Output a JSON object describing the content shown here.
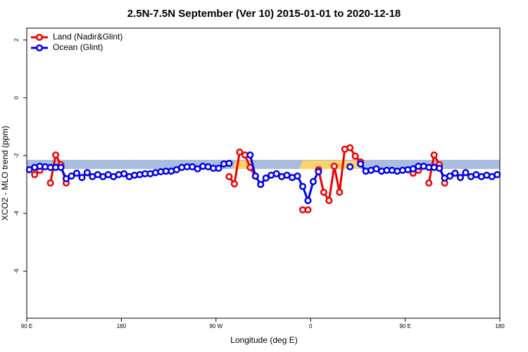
{
  "chart_data": {
    "type": "line",
    "title": "2.5N-7.5N September (Ver 10)   2015-01-01 to 2020-12-18",
    "x_label": "Longitude (deg E)",
    "y_label": "XCO2 - MLO trend (ppm)",
    "xlim": [
      90,
      540
    ],
    "ylim": [
      -7.63,
      2.41
    ],
    "xticks": [
      {
        "value": 90,
        "label": "90 E"
      },
      180,
      {
        "value": 270,
        "label": "90 W"
      },
      {
        "value": 360,
        "label": "0"
      },
      {
        "value": 450,
        "label": "90 E"
      },
      {
        "value": 540,
        "label": "180"
      }
    ],
    "yticks": [
      -6,
      -4,
      -2,
      0,
      2
    ],
    "legend": "top-left",
    "x": [
      92.5,
      97.5,
      102.5,
      107.5,
      112.5,
      117.5,
      122.5,
      127.5,
      132.5,
      137.5,
      142.5,
      147.5,
      152.5,
      157.5,
      162.5,
      167.5,
      172.5,
      177.5,
      182.5,
      187.5,
      192.5,
      197.5,
      202.5,
      207.5,
      212.5,
      217.5,
      222.5,
      227.5,
      232.5,
      237.5,
      242.5,
      247.5,
      252.5,
      257.5,
      262.5,
      267.5,
      272.5,
      277.5,
      282.5,
      287.5,
      292.5,
      297.5,
      302.5,
      307.5,
      312.5,
      317.5,
      322.5,
      327.5,
      332.5,
      337.5,
      342.5,
      347.5,
      352.5,
      357.5,
      362.5,
      367.5,
      372.5,
      377.5,
      382.5,
      387.5,
      392.5,
      397.5,
      402.5,
      407.5,
      412.5,
      417.5,
      422.5,
      427.5,
      432.5,
      437.5,
      442.5,
      447.5,
      452.5,
      457.5,
      462.5,
      467.5,
      472.5,
      477.5,
      482.5,
      487.5,
      492.5,
      497.5,
      502.5,
      507.5,
      512.5,
      517.5,
      522.5,
      527.5,
      532.5,
      537.5
    ],
    "series": [
      {
        "name": "Land (Nadir&Glint)",
        "color": "#ee0000",
        "values": [
          null,
          -2.66,
          -2.51,
          null,
          -2.95,
          -1.98,
          -2.32,
          -2.95,
          null,
          null,
          null,
          null,
          null,
          null,
          null,
          null,
          null,
          null,
          null,
          null,
          null,
          null,
          null,
          null,
          null,
          null,
          null,
          null,
          null,
          null,
          null,
          null,
          null,
          null,
          null,
          null,
          null,
          null,
          -2.73,
          -2.98,
          -1.88,
          -1.98,
          -2.41,
          -2.71,
          null,
          null,
          null,
          null,
          null,
          null,
          null,
          null,
          -3.88,
          -3.88,
          null,
          -2.49,
          -3.27,
          -3.56,
          -2.37,
          -3.27,
          -1.78,
          -1.73,
          -2.02,
          -2.22,
          null,
          null,
          null,
          null,
          null,
          null,
          null,
          null,
          null,
          -2.61,
          -2.51,
          null,
          -2.95,
          -1.98,
          -2.32,
          -2.95,
          null,
          null,
          null,
          null,
          null,
          null,
          null,
          null,
          null,
          null
        ]
      },
      {
        "name": "Ocean (Glint)",
        "color": "#0000ee",
        "values": [
          -2.49,
          -2.41,
          -2.37,
          -2.39,
          -2.41,
          -2.41,
          -2.41,
          -2.8,
          -2.71,
          -2.61,
          -2.76,
          -2.59,
          -2.73,
          -2.66,
          -2.73,
          -2.66,
          -2.73,
          -2.66,
          -2.63,
          -2.73,
          -2.68,
          -2.66,
          -2.63,
          -2.63,
          -2.59,
          -2.56,
          -2.54,
          -2.54,
          -2.49,
          -2.41,
          -2.39,
          -2.39,
          -2.46,
          -2.37,
          -2.39,
          -2.44,
          -2.44,
          -2.29,
          -2.27,
          null,
          null,
          null,
          -1.98,
          -2.71,
          -3.0,
          -2.78,
          -2.68,
          -2.63,
          -2.73,
          -2.68,
          -2.76,
          -2.71,
          -3.07,
          -3.56,
          -2.9,
          -2.56,
          null,
          null,
          null,
          null,
          null,
          -2.39,
          null,
          -2.29,
          -2.54,
          -2.51,
          -2.46,
          -2.54,
          -2.51,
          -2.51,
          -2.54,
          -2.51,
          -2.49,
          -2.46,
          -2.37,
          -2.37,
          -2.41,
          -2.41,
          -2.44,
          -2.78,
          -2.71,
          -2.61,
          -2.76,
          -2.59,
          -2.73,
          -2.66,
          -2.73,
          -2.68,
          -2.73,
          -2.66
        ]
      }
    ]
  }
}
